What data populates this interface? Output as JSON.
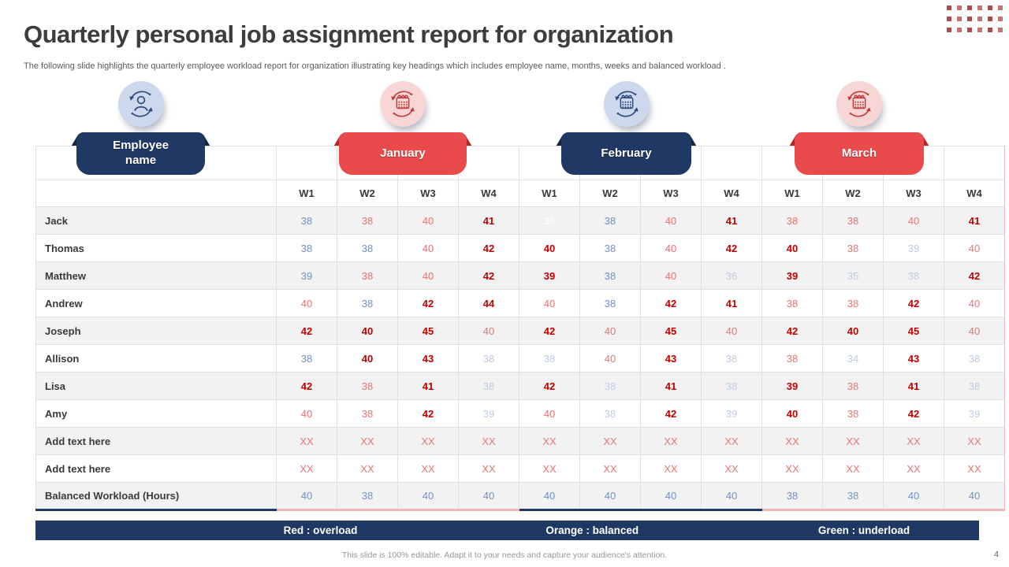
{
  "slide": {
    "title": "Quarterly personal job assignment report for organization",
    "subtitle": "The following slide highlights the quarterly employee workload report for organization illustrating key headings which includes employee name, months, weeks and balanced workload .",
    "footer_note": "This slide is 100% editable. Adapt it to your needs and capture your audience's attention.",
    "page_number": "4"
  },
  "groups": [
    {
      "label": "Employee name",
      "theme": "navy",
      "icon": "person-sync-icon"
    },
    {
      "label": "January",
      "theme": "red",
      "icon": "calendar-sync-icon"
    },
    {
      "label": "February",
      "theme": "navy",
      "icon": "calendar-sync-icon"
    },
    {
      "label": "March",
      "theme": "red",
      "icon": "calendar-sync-icon"
    }
  ],
  "table": {
    "week_headers": [
      "W1",
      "W2",
      "W3",
      "W4"
    ],
    "months": [
      "January",
      "February",
      "March"
    ],
    "value_styles": {
      "R": "overload-strong-red-bold",
      "r": "overload-light-red",
      "b": "balanced-blue",
      "l": "underload-pale-blue",
      "w": "white"
    },
    "rows": [
      {
        "label": "Jack",
        "cells": [
          [
            "38",
            "b"
          ],
          [
            "38",
            "r"
          ],
          [
            "40",
            "r"
          ],
          [
            "41",
            "R"
          ],
          [
            "38",
            "w"
          ],
          [
            "38",
            "b"
          ],
          [
            "40",
            "r"
          ],
          [
            "41",
            "R"
          ],
          [
            "38",
            "r"
          ],
          [
            "38",
            "r"
          ],
          [
            "40",
            "r"
          ],
          [
            "41",
            "R"
          ]
        ]
      },
      {
        "label": "Thomas",
        "cells": [
          [
            "38",
            "b"
          ],
          [
            "38",
            "b"
          ],
          [
            "40",
            "r"
          ],
          [
            "42",
            "R"
          ],
          [
            "40",
            "R"
          ],
          [
            "38",
            "b"
          ],
          [
            "40",
            "r"
          ],
          [
            "42",
            "R"
          ],
          [
            "40",
            "R"
          ],
          [
            "38",
            "r"
          ],
          [
            "39",
            "l"
          ],
          [
            "40",
            "r"
          ]
        ]
      },
      {
        "label": "Matthew",
        "cells": [
          [
            "39",
            "b"
          ],
          [
            "38",
            "r"
          ],
          [
            "40",
            "r"
          ],
          [
            "42",
            "R"
          ],
          [
            "39",
            "R"
          ],
          [
            "38",
            "b"
          ],
          [
            "40",
            "r"
          ],
          [
            "36",
            "l"
          ],
          [
            "39",
            "R"
          ],
          [
            "35",
            "l"
          ],
          [
            "38",
            "l"
          ],
          [
            "42",
            "R"
          ]
        ]
      },
      {
        "label": "Andrew",
        "cells": [
          [
            "40",
            "r"
          ],
          [
            "38",
            "b"
          ],
          [
            "42",
            "R"
          ],
          [
            "44",
            "R"
          ],
          [
            "40",
            "r"
          ],
          [
            "38",
            "b"
          ],
          [
            "42",
            "R"
          ],
          [
            "41",
            "R"
          ],
          [
            "38",
            "r"
          ],
          [
            "38",
            "r"
          ],
          [
            "42",
            "R"
          ],
          [
            "40",
            "r"
          ]
        ]
      },
      {
        "label": "Joseph",
        "cells": [
          [
            "42",
            "R"
          ],
          [
            "40",
            "R"
          ],
          [
            "45",
            "R"
          ],
          [
            "40",
            "r"
          ],
          [
            "42",
            "R"
          ],
          [
            "40",
            "r"
          ],
          [
            "45",
            "R"
          ],
          [
            "40",
            "r"
          ],
          [
            "42",
            "R"
          ],
          [
            "40",
            "R"
          ],
          [
            "45",
            "R"
          ],
          [
            "40",
            "r"
          ]
        ]
      },
      {
        "label": "Allison",
        "cells": [
          [
            "38",
            "b"
          ],
          [
            "40",
            "R"
          ],
          [
            "43",
            "R"
          ],
          [
            "38",
            "l"
          ],
          [
            "38",
            "l"
          ],
          [
            "40",
            "r"
          ],
          [
            "43",
            "R"
          ],
          [
            "38",
            "l"
          ],
          [
            "38",
            "r"
          ],
          [
            "34",
            "l"
          ],
          [
            "43",
            "R"
          ],
          [
            "38",
            "l"
          ]
        ]
      },
      {
        "label": "Lisa",
        "cells": [
          [
            "42",
            "R"
          ],
          [
            "38",
            "r"
          ],
          [
            "41",
            "R"
          ],
          [
            "38",
            "l"
          ],
          [
            "42",
            "R"
          ],
          [
            "38",
            "l"
          ],
          [
            "41",
            "R"
          ],
          [
            "38",
            "l"
          ],
          [
            "39",
            "R"
          ],
          [
            "38",
            "r"
          ],
          [
            "41",
            "R"
          ],
          [
            "38",
            "l"
          ]
        ]
      },
      {
        "label": "Amy",
        "cells": [
          [
            "40",
            "r"
          ],
          [
            "38",
            "r"
          ],
          [
            "42",
            "R"
          ],
          [
            "39",
            "l"
          ],
          [
            "40",
            "r"
          ],
          [
            "38",
            "l"
          ],
          [
            "42",
            "R"
          ],
          [
            "39",
            "l"
          ],
          [
            "40",
            "R"
          ],
          [
            "38",
            "r"
          ],
          [
            "42",
            "R"
          ],
          [
            "39",
            "l"
          ]
        ]
      },
      {
        "label": "Add text here",
        "cells": [
          [
            "XX",
            "r"
          ],
          [
            "XX",
            "r"
          ],
          [
            "XX",
            "r"
          ],
          [
            "XX",
            "r"
          ],
          [
            "XX",
            "r"
          ],
          [
            "XX",
            "r"
          ],
          [
            "XX",
            "r"
          ],
          [
            "XX",
            "r"
          ],
          [
            "XX",
            "r"
          ],
          [
            "XX",
            "r"
          ],
          [
            "XX",
            "r"
          ],
          [
            "XX",
            "r"
          ]
        ]
      },
      {
        "label": "Add text here",
        "cells": [
          [
            "XX",
            "r"
          ],
          [
            "XX",
            "r"
          ],
          [
            "XX",
            "r"
          ],
          [
            "XX",
            "r"
          ],
          [
            "XX",
            "r"
          ],
          [
            "XX",
            "r"
          ],
          [
            "XX",
            "r"
          ],
          [
            "XX",
            "r"
          ],
          [
            "XX",
            "r"
          ],
          [
            "XX",
            "r"
          ],
          [
            "XX",
            "r"
          ],
          [
            "XX",
            "r"
          ]
        ]
      },
      {
        "label": "Balanced Workload (Hours)",
        "cells": [
          [
            "40",
            "b"
          ],
          [
            "38",
            "b"
          ],
          [
            "40",
            "b"
          ],
          [
            "40",
            "b"
          ],
          [
            "40",
            "b"
          ],
          [
            "40",
            "b"
          ],
          [
            "40",
            "b"
          ],
          [
            "40",
            "b"
          ],
          [
            "38",
            "b"
          ],
          [
            "38",
            "b"
          ],
          [
            "40",
            "b"
          ],
          [
            "40",
            "b"
          ]
        ]
      }
    ]
  },
  "legend": {
    "items": [
      "Red : overload",
      "Orange : balanced",
      "Green : underload"
    ]
  },
  "decor": {
    "dot_grid": {
      "rows": 3,
      "cols": 6
    }
  },
  "colors": {
    "navy": "#203864",
    "red": "#e94b4c",
    "fold_navy": "#142441",
    "fold_red": "#b42424",
    "overload_strong": "#c00000",
    "overload_light": "#e57474",
    "balanced_blue": "#7291c4",
    "underload_pale": "#bfcbe3",
    "white_val": "#ffffff",
    "row_stripe": "#f2f2f2",
    "icon_blue_bg": "#cdd8ec",
    "icon_pink_bg": "#f9d6d6",
    "dot_red": "#ad4b46"
  }
}
